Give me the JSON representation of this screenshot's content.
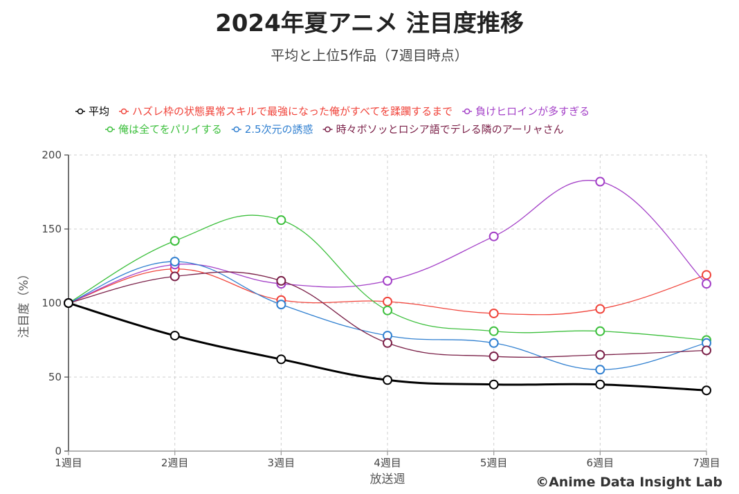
{
  "chart_data": {
    "type": "line",
    "title": "2024年夏アニメ 注目度推移",
    "subtitle": "平均と上位5作品（7週目時点）",
    "xlabel": "放送週",
    "ylabel": "注目度（%）",
    "categories": [
      "1週目",
      "2週目",
      "3週目",
      "4週目",
      "5週目",
      "6週目",
      "7週目"
    ],
    "ylim": [
      0,
      200
    ],
    "yticks": [
      0,
      50,
      100,
      150,
      200
    ],
    "grid": true,
    "legend_position": "top",
    "series": [
      {
        "name": "平均",
        "color": "#000000",
        "width": 3,
        "values": [
          100,
          78,
          62,
          48,
          45,
          45,
          41
        ]
      },
      {
        "name": "ハズレ枠の状態異常スキルで最強になった俺がすべてを蹂躙するまで",
        "color": "#f0433a",
        "width": 1.3,
        "values": [
          100,
          123,
          102,
          101,
          93,
          96,
          119
        ]
      },
      {
        "name": "負けヒロインが多すぎる",
        "color": "#a33fc7",
        "width": 1.3,
        "values": [
          100,
          126,
          113,
          115,
          145,
          182,
          113
        ]
      },
      {
        "name": "俺は全てをパリイする",
        "color": "#3cbf3c",
        "width": 1.3,
        "values": [
          100,
          142,
          156,
          95,
          81,
          81,
          75
        ]
      },
      {
        "name": "2.5次元の誘惑",
        "color": "#2f7fd0",
        "width": 1.3,
        "values": [
          100,
          128,
          99,
          78,
          73,
          55,
          73
        ]
      },
      {
        "name": "時々ボソッとロシア語でデレる隣のアーリャさん",
        "color": "#7a1f47",
        "width": 1.3,
        "values": [
          100,
          118,
          115,
          73,
          64,
          65,
          68
        ]
      }
    ]
  },
  "credit": "©Anime Data Insight Lab"
}
